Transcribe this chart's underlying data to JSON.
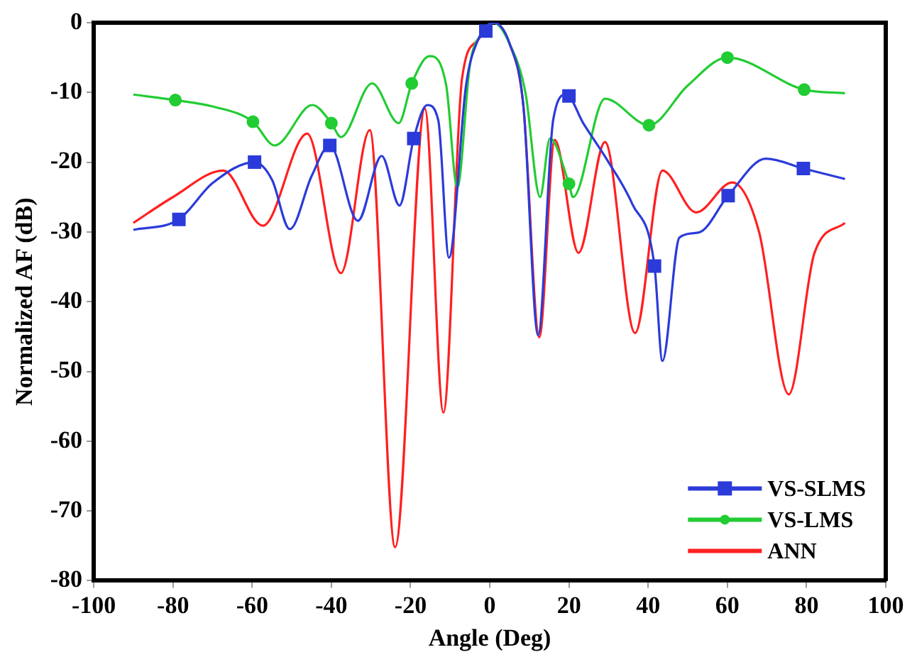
{
  "chart_data": {
    "type": "line",
    "xlabel": "Angle (Deg)",
    "ylabel": "Normalized AF (dB)",
    "xlim": [
      -100,
      100
    ],
    "xticks": [
      -100,
      -80,
      -60,
      -40,
      -20,
      0,
      20,
      40,
      60,
      80,
      100
    ],
    "ylim": [
      -80,
      0
    ],
    "yticks": [
      -80,
      -70,
      -60,
      -50,
      -40,
      -30,
      -20,
      -10,
      0
    ],
    "grid": false,
    "legend": "bottom right",
    "series": [
      {
        "name": "VS-SLMS",
        "color": "#2b3bd9",
        "x": [
          -90,
          -78.5,
          -70,
          -59.4,
          -55,
          -50.5,
          -45,
          -40.4,
          -33.3,
          -27.3,
          -22.8,
          -19.2,
          -15.8,
          -13,
          -10.3,
          -6,
          -3,
          1,
          5,
          8.5,
          12.2,
          16,
          19.3,
          23.6,
          30,
          36,
          41.6,
          43.6,
          47.9,
          52.7,
          60.2,
          69.7,
          79.2,
          89.7
        ],
        "values": [
          -29.7,
          -28.2,
          -23,
          -20,
          -22.5,
          -29.6,
          -22,
          -17.6,
          -28.4,
          -19.1,
          -26.2,
          -16.6,
          -11.8,
          -14,
          -33.7,
          -9,
          -2.5,
          0,
          -3,
          -12,
          -44.8,
          -14,
          -10.3,
          -14.4,
          -20,
          -26,
          -34.9,
          -48.5,
          -30.8,
          -30.1,
          -24.8,
          -19.5,
          -20.9,
          -22.4
        ]
      },
      {
        "color": "#2b3bd9",
        "type": "scatter",
        "marker": "square",
        "x": [
          -78.5,
          -59.4,
          -40.4,
          -19.2,
          -1,
          20,
          41.6,
          60.2,
          79.2
        ],
        "values": [
          -28.2,
          -20,
          -17.6,
          -16.6,
          -1.2,
          -10.5,
          -34.9,
          -24.8,
          -20.9
        ]
      },
      {
        "name": "VS-LMS",
        "color": "#22cc33",
        "x": [
          -90,
          -79.4,
          -70,
          -59.8,
          -54.3,
          -44.8,
          -40,
          -37.6,
          -29.7,
          -23,
          -19.7,
          -15.2,
          -11,
          -8.2,
          -5,
          -2,
          1,
          5,
          9,
          12.7,
          15.2,
          20,
          21,
          29.1,
          40.2,
          50,
          60,
          79.4,
          89.7
        ],
        "values": [
          -10.3,
          -11.1,
          -12,
          -14.2,
          -17.6,
          -11.8,
          -14.4,
          -16.4,
          -8.7,
          -14.4,
          -8.7,
          -4.8,
          -9,
          -23.6,
          -6,
          -1.5,
          0,
          -3,
          -10,
          -25,
          -16.6,
          -23.1,
          -25,
          -10.9,
          -14.7,
          -9,
          -5,
          -9.6,
          -10.1
        ]
      },
      {
        "color": "#22cc33",
        "type": "scatter",
        "marker": "circle",
        "x": [
          -79.4,
          -59.8,
          -40,
          -19.7,
          20,
          40.2,
          60,
          79.4
        ],
        "values": [
          -11.1,
          -14.2,
          -14.4,
          -8.7,
          -23.1,
          -14.7,
          -5,
          -9.6
        ]
      },
      {
        "name": "ANN",
        "color": "#ff2020",
        "x": [
          -90,
          -80,
          -67.3,
          -57.3,
          -46.1,
          -37.6,
          -30.3,
          -23.9,
          -16.4,
          -11.7,
          -7,
          -3,
          1,
          5,
          8.5,
          12.5,
          16.4,
          22.4,
          29.1,
          36.7,
          43.6,
          52.1,
          61.2,
          68,
          75.5,
          82,
          89.7
        ],
        "values": [
          -28.7,
          -25,
          -21.2,
          -29.1,
          -15.9,
          -35.9,
          -15.4,
          -75.2,
          -12.3,
          -55.9,
          -8,
          -2.5,
          0,
          -3,
          -12,
          -45.1,
          -16.8,
          -33,
          -17.1,
          -44.5,
          -21.2,
          -27.2,
          -22.9,
          -30,
          -53.3,
          -33,
          -28.7
        ]
      }
    ]
  }
}
